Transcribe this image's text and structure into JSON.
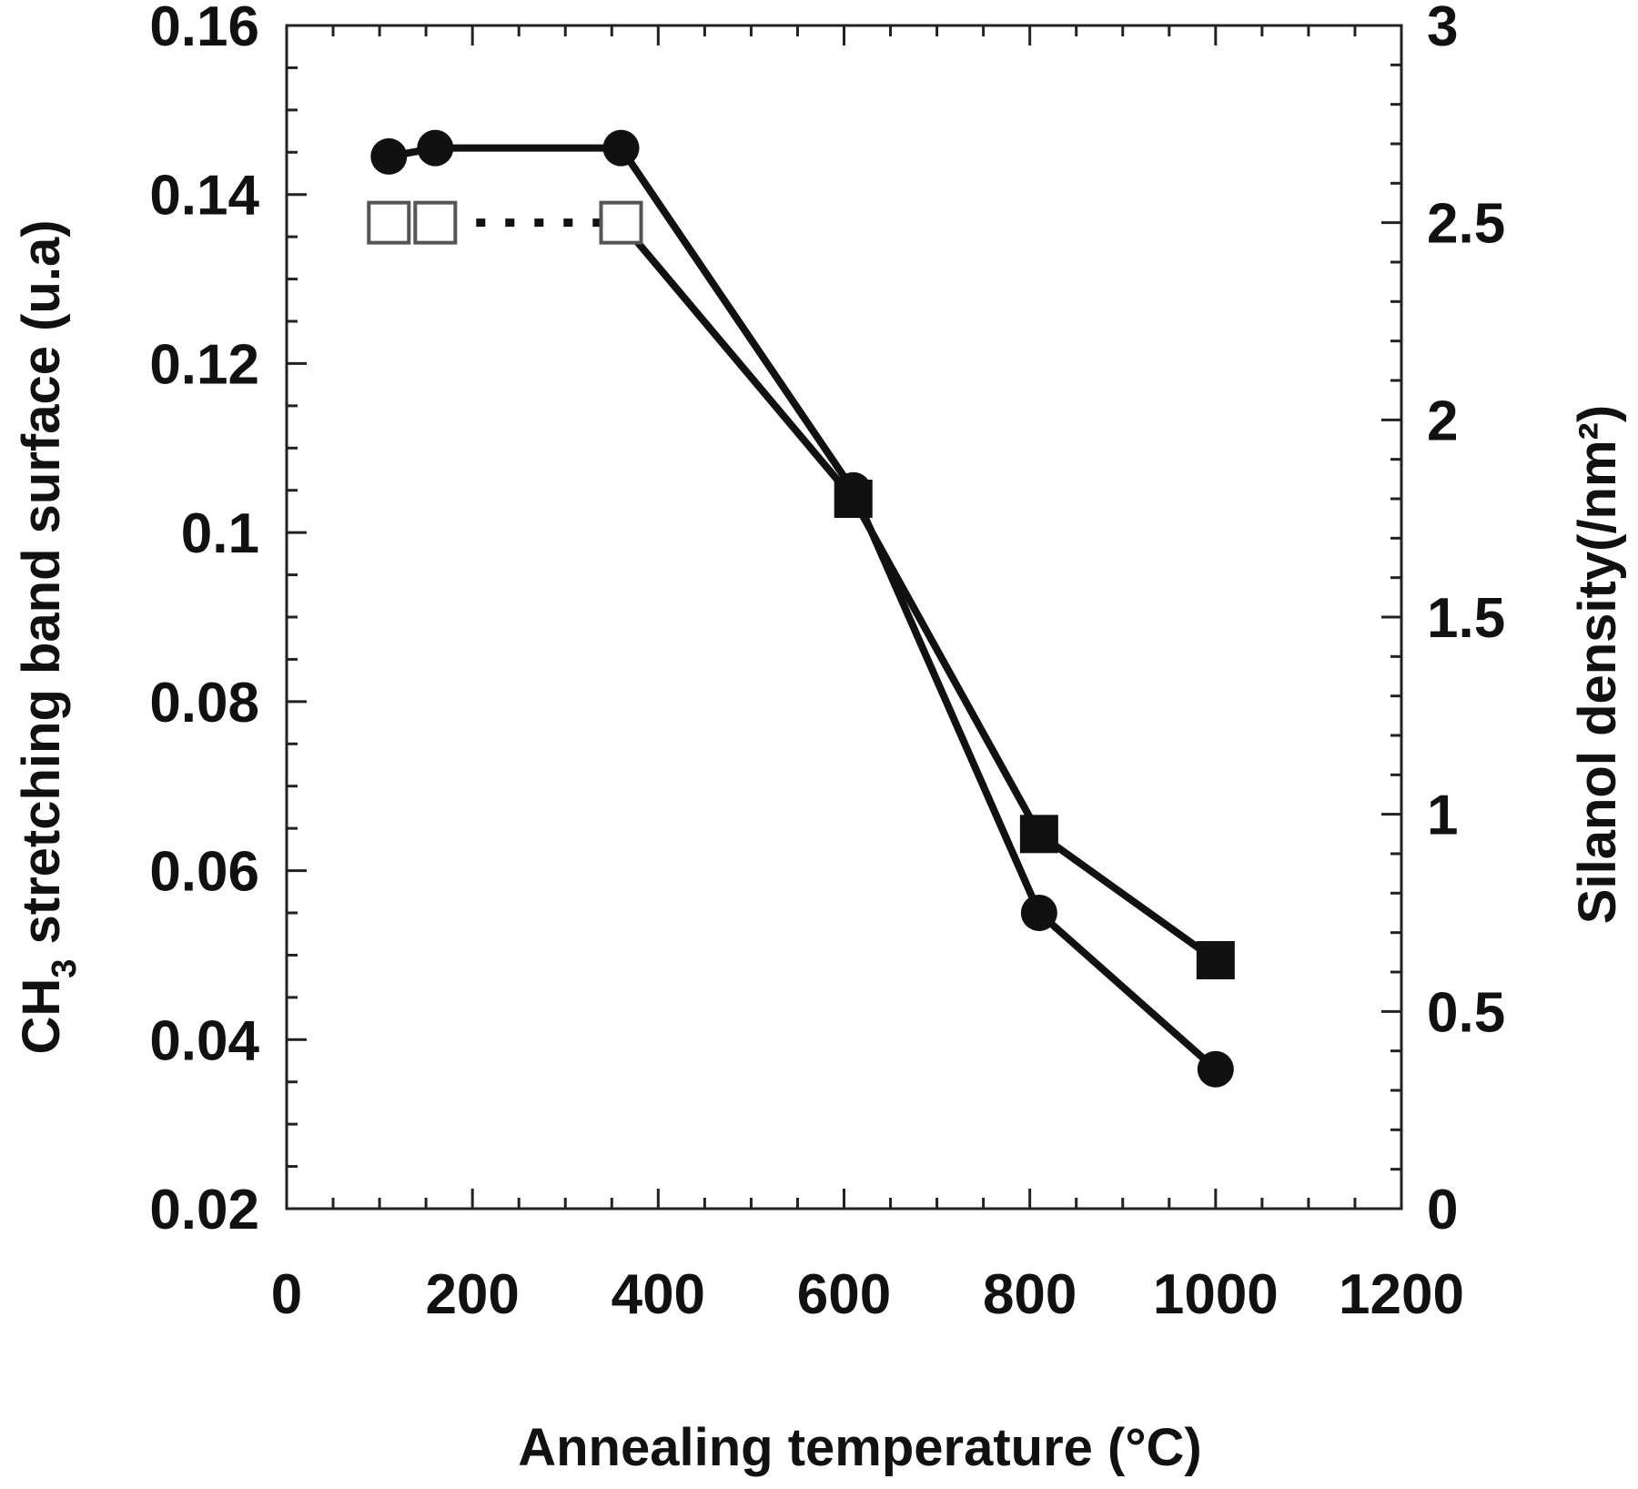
{
  "chart_data": {
    "type": "line",
    "xlabel": "Annealing temperature (°C)",
    "ylabel": {
      "prefix": "CH",
      "subscript": "3",
      "suffix": " stretching band surface (u.a)"
    },
    "y2label": "Silanol density(/nm²)",
    "xlim": [
      0,
      1200
    ],
    "ylim": [
      0.02,
      0.16
    ],
    "y2lim": [
      0,
      3
    ],
    "x_ticks": [
      "0",
      "200",
      "400",
      "600",
      "800",
      "1000",
      "1200"
    ],
    "y_ticks": [
      "0.02",
      "0.04",
      "0.06",
      "0.08",
      "0.1",
      "0.12",
      "0.14",
      "0.16"
    ],
    "y2_ticks": [
      "0",
      "0.5",
      "1",
      "1.5",
      "2",
      "2.5",
      "3"
    ],
    "grid": false,
    "series": [
      {
        "axis": "left",
        "marker": "filled-circle",
        "line": "solid",
        "color": "#111111",
        "points": [
          [
            110,
            0.1445
          ],
          [
            160,
            0.1455
          ],
          [
            360,
            0.1455
          ],
          [
            610,
            0.105
          ],
          [
            810,
            0.055
          ],
          [
            1000,
            0.0365
          ]
        ]
      },
      {
        "axis": "right",
        "marker": "open-square",
        "line": "dotted",
        "color": "#111111",
        "points": [
          [
            110,
            2.5
          ],
          [
            160,
            2.5
          ],
          [
            360,
            2.5
          ]
        ]
      },
      {
        "axis": "right",
        "marker": "filled-square",
        "line": "solid",
        "color": "#111111",
        "points": [
          [
            360,
            2.5
          ],
          [
            610,
            1.8
          ],
          [
            810,
            0.95
          ],
          [
            1000,
            0.63
          ]
        ]
      }
    ]
  }
}
